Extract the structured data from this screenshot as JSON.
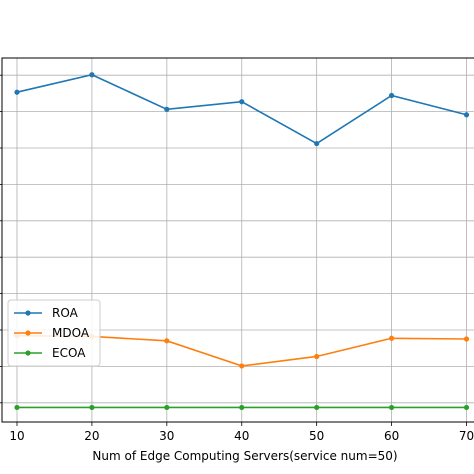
{
  "chart_data": {
    "type": "line",
    "title": "",
    "xlabel": "Num of Edge Computing Servers(service num=50)",
    "ylabel": "",
    "x": [
      10,
      20,
      30,
      40,
      50,
      60,
      70
    ],
    "x_ticks": [
      "10",
      "20",
      "30",
      "40",
      "50",
      "60",
      "70"
    ],
    "xlim": [
      8,
      71
    ],
    "ylim": [
      0,
      1
    ],
    "grid": true,
    "legend_position": "lower-left",
    "series": [
      {
        "name": "ROA",
        "color": "#1f77b4",
        "values": [
          0.906,
          0.954,
          0.859,
          0.88,
          0.765,
          0.897,
          0.844
        ]
      },
      {
        "name": "MDOA",
        "color": "#ff7f0e",
        "values": [
          0.237,
          0.235,
          0.223,
          0.154,
          0.18,
          0.23,
          0.228
        ]
      },
      {
        "name": "ECOA",
        "color": "#2ca02c",
        "values": [
          0.04,
          0.04,
          0.04,
          0.04,
          0.04,
          0.04,
          0.04
        ]
      }
    ]
  }
}
